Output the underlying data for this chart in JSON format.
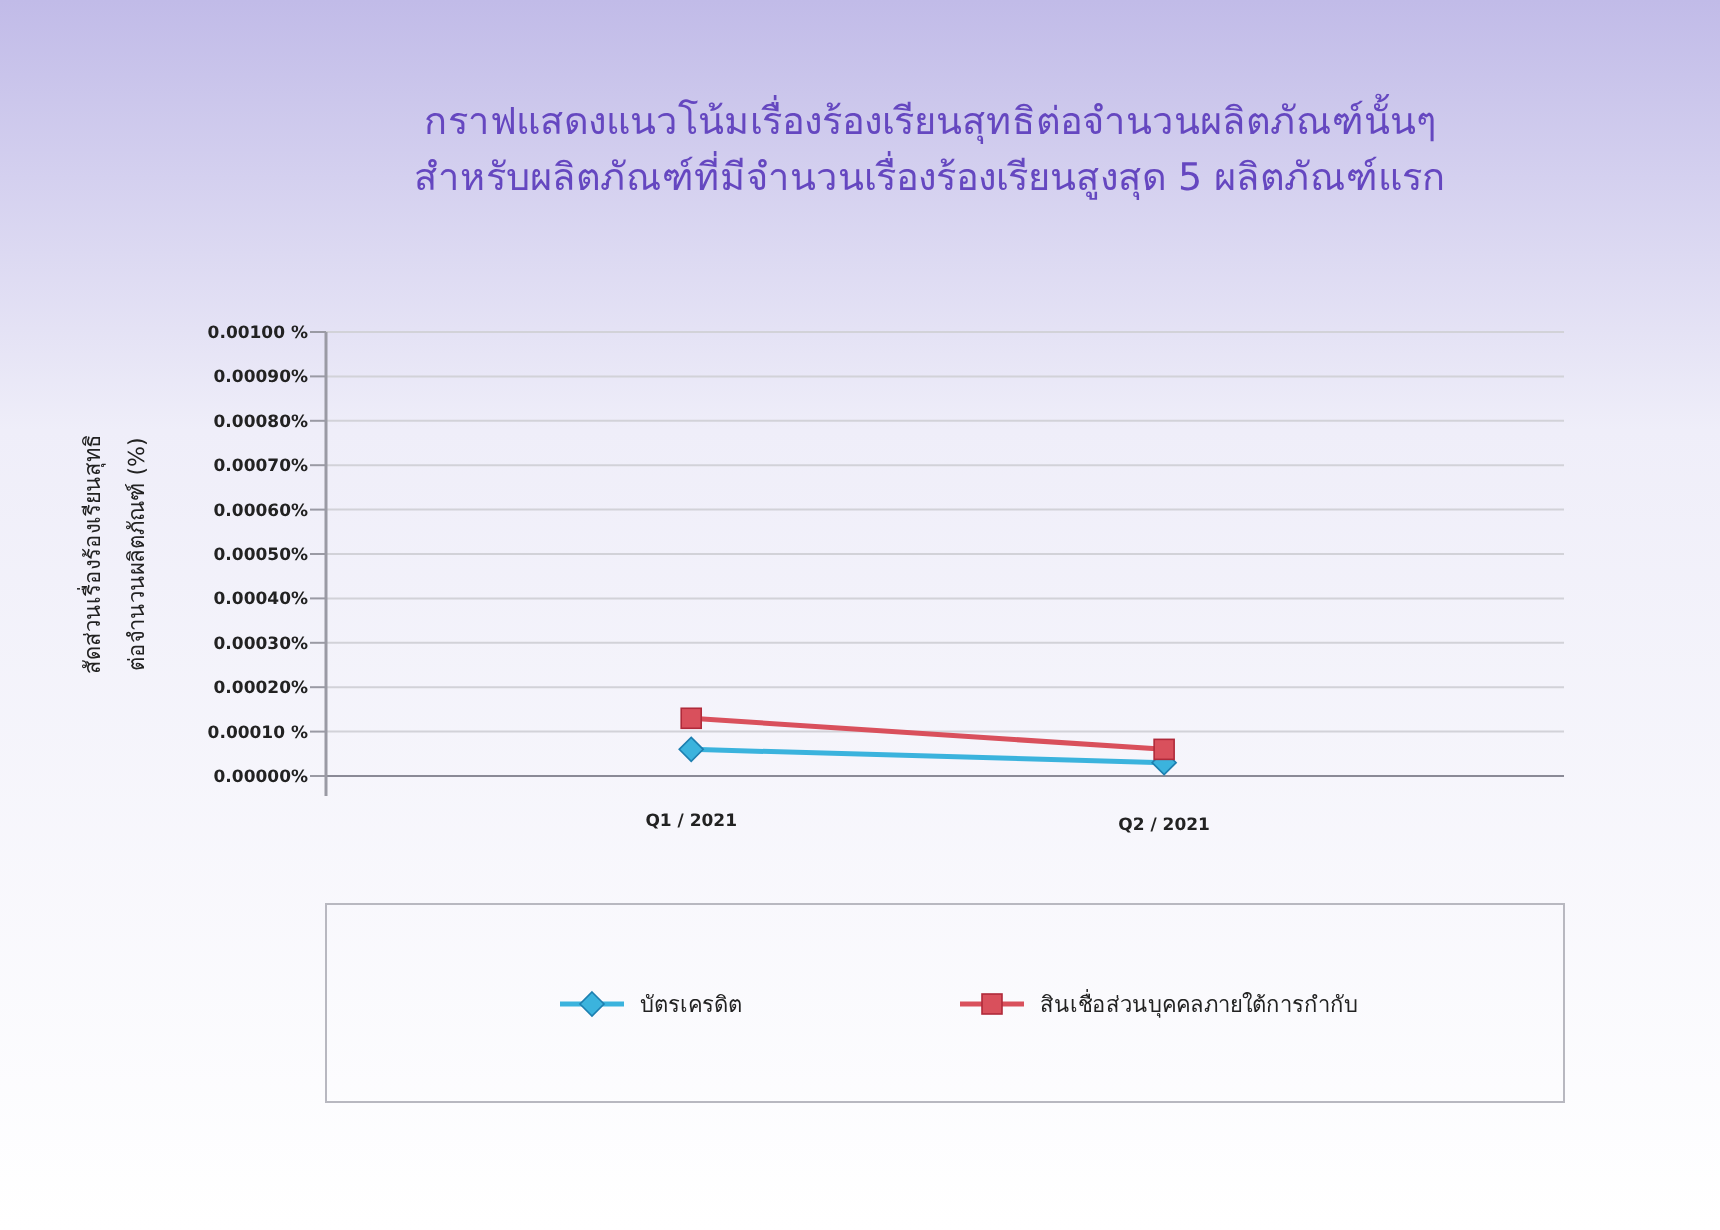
{
  "chart_data": {
    "type": "line",
    "title": "กราฟแสดงแนวโน้มเรื่องร้องเรียนสุทธิต่อจำนวนผลิตภัณฑ์นั้นๆ\nสำหรับผลิตภัณฑ์ที่มีจำนวนเรื่องร้องเรียนสูงสุด 5 ผลิตภัณฑ์แรก",
    "ylabel": "สัดส่วนเรื่องร้องเรียนสุทธิ\nต่อจำนวนผลิตภัณฑ์ (%)",
    "categories": [
      "Q1 / 2021",
      "Q2 / 2021"
    ],
    "series": [
      {
        "name": "บัตรเครดิต",
        "color": "#3bb3dd",
        "marker": "diamond",
        "values": [
          6e-05,
          3e-05
        ]
      },
      {
        "name": "สินเชื่อส่วนบุคคลภายใต้การกำกับ",
        "color": "#d9505c",
        "marker": "square",
        "values": [
          0.00013,
          6e-05
        ]
      }
    ],
    "ylim": [
      0,
      0.001
    ],
    "yticks": [
      {
        "value": 0,
        "label": "0.00000%"
      },
      {
        "value": 0.0001,
        "label": "0.00010 %"
      },
      {
        "value": 0.0002,
        "label": "0.00020%"
      },
      {
        "value": 0.0003,
        "label": "0.00030%"
      },
      {
        "value": 0.0004,
        "label": "0.00040%"
      },
      {
        "value": 0.0005,
        "label": "0.00050%"
      },
      {
        "value": 0.0006,
        "label": "0.00060%"
      },
      {
        "value": 0.0007,
        "label": "0.00070%"
      },
      {
        "value": 0.0008,
        "label": "0.00080%"
      },
      {
        "value": 0.0009,
        "label": "0.00090%"
      },
      {
        "value": 0.001,
        "label": "0.00100 %"
      }
    ],
    "grid": "y",
    "legend": "bottom",
    "line_style": "solid"
  }
}
